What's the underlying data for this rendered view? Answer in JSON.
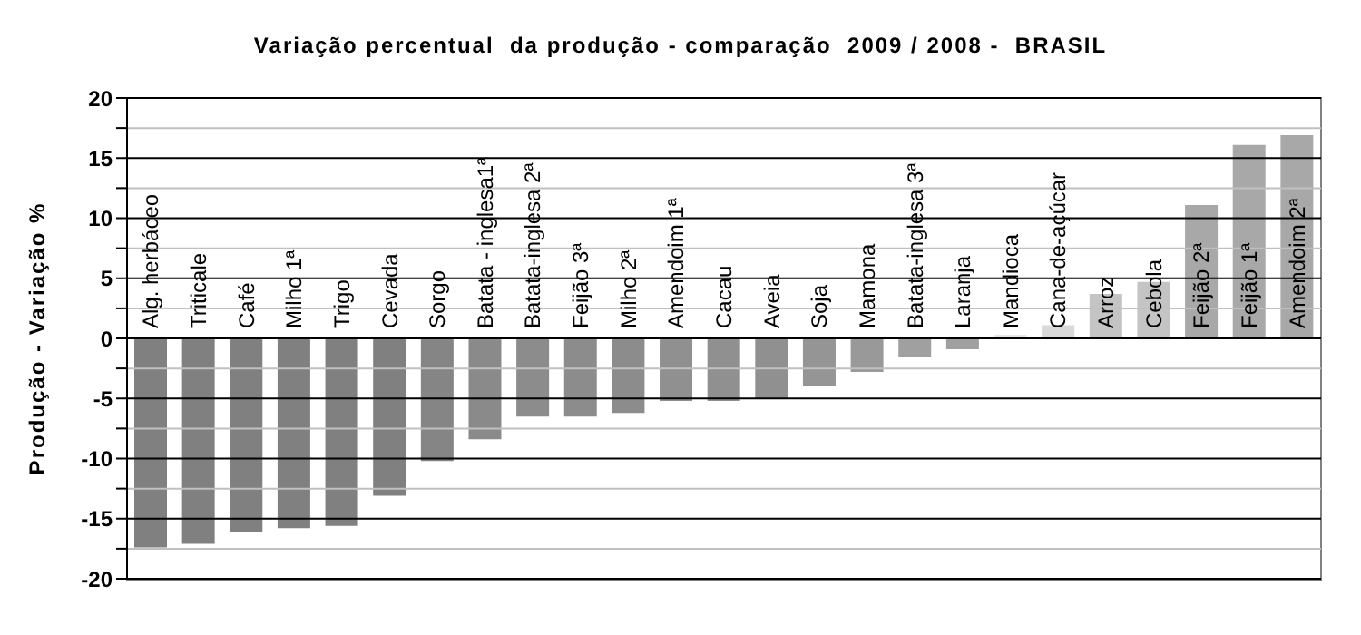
{
  "chart_data": {
    "type": "bar",
    "title": "Variação percentual  da produção - comparação  2009 / 2008 -  BRASIL",
    "ylabel": "Produção - Variação %",
    "categories": [
      "Alg. herbáceo",
      "Triticale",
      "Café",
      "Milho 1ª",
      "Trigo",
      "Cevada",
      "Sorgo",
      "Batata - inglesa1ª",
      "Batata-inglesa 2ª",
      "Feijão 3ª",
      "Milho 2ª",
      "Amendoim 1ª",
      "Cacau",
      "Aveia",
      "Soja",
      "Mamona",
      "Batata-inglesa 3ª",
      "Laranja",
      "Mandioca",
      "Cana-de-açúcar",
      "Arroz",
      "Cebola",
      "Feijão 2ª",
      "Feijão 1ª",
      "Amendoim 2ª"
    ],
    "values": [
      -17.4,
      -17.1,
      -16.1,
      -15.8,
      -15.6,
      -13.1,
      -10.2,
      -8.4,
      -6.5,
      -6.5,
      -6.2,
      -5.2,
      -5.2,
      -5.0,
      -4.0,
      -2.8,
      -1.5,
      -0.9,
      0.3,
      1.1,
      3.7,
      4.7,
      11.1,
      16.1,
      16.9
    ],
    "colors": [
      "#808080",
      "#808080",
      "#808080",
      "#808080",
      "#808080",
      "#808080",
      "#858585",
      "#8a8a8a",
      "#8c8c8c",
      "#8c8c8c",
      "#8c8c8c",
      "#909090",
      "#909090",
      "#909090",
      "#959595",
      "#999999",
      "#a0a0a0",
      "#a0a0a0",
      "#e6e6e6",
      "#d9d9d9",
      "#c4c4c4",
      "#c4c4c4",
      "#a8a8a8",
      "#a8a8a8",
      "#a8a8a8"
    ],
    "ylim": [
      -20,
      20
    ],
    "yticks": [
      -20,
      {
        "value": -17.5,
        "label": null
      },
      -15,
      {
        "value": -12.5,
        "label": null
      },
      -10,
      {
        "value": -7.5,
        "label": null
      },
      -5,
      {
        "value": -2.5,
        "label": null
      },
      0,
      {
        "value": 2.5,
        "label": null
      },
      5,
      {
        "value": 7.5,
        "label": null
      },
      10,
      {
        "value": 12.5,
        "label": null
      },
      15,
      {
        "value": 17.5,
        "label": null
      },
      20
    ],
    "grid": true
  }
}
